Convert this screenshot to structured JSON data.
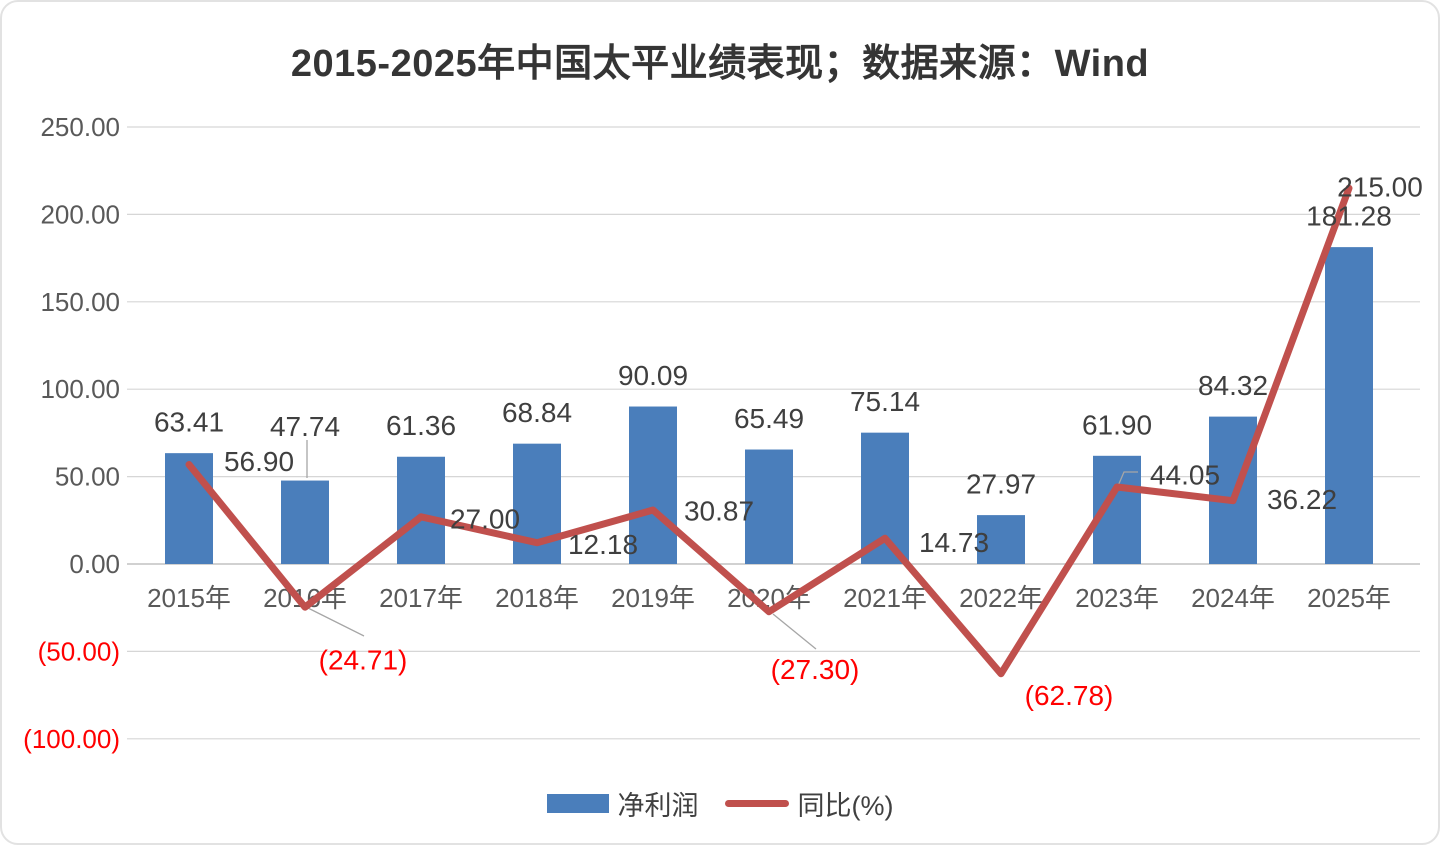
{
  "colors": {
    "bar": "#4A7EBB",
    "line": "#C0504D",
    "gridline": "#D6D6D6",
    "axis_line": "#C2C2C2",
    "axis_text": "#595959",
    "data_label": "#3F3F3F",
    "negative_label": "#FF0000",
    "leader": "#A6A6A6",
    "title": "#353535"
  },
  "chart_data": {
    "type": "bar+line combo",
    "title": "2015-2025年中国太平业绩表现；数据来源：Wind",
    "categories": [
      "2015年",
      "2016年",
      "2017年",
      "2018年",
      "2019年",
      "2020年",
      "2021年",
      "2022年",
      "2023年",
      "2024年",
      "2025年"
    ],
    "series": [
      {
        "name": "净利润",
        "type": "bar",
        "values": [
          63.41,
          47.74,
          61.36,
          68.84,
          90.09,
          65.49,
          75.14,
          27.97,
          61.9,
          84.32,
          181.28
        ]
      },
      {
        "name": "同比(%)",
        "type": "line",
        "values": [
          56.9,
          -24.71,
          27.0,
          12.18,
          30.87,
          -27.3,
          14.73,
          -62.78,
          44.05,
          36.22,
          215.0
        ]
      }
    ],
    "ylim": [
      -100,
      250
    ],
    "ytick_step": 50,
    "yticks": [
      250,
      200,
      150,
      100,
      50,
      0,
      -50,
      -100
    ],
    "grid": "horizontal",
    "legend_position": "bottom",
    "value_format": "two-decimals, negatives in red parentheses"
  }
}
